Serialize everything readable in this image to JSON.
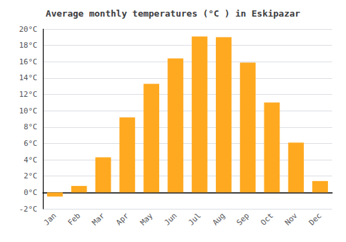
{
  "chart_data": {
    "type": "bar",
    "title": "Average monthly temperatures (°C ) in Eskipazar",
    "categories": [
      "Jan",
      "Feb",
      "Mar",
      "Apr",
      "May",
      "Jun",
      "Jul",
      "Aug",
      "Sep",
      "Oct",
      "Nov",
      "Dec"
    ],
    "values": [
      -0.5,
      0.8,
      4.3,
      9.2,
      13.3,
      16.4,
      19.1,
      19.0,
      15.9,
      11.0,
      6.1,
      1.4
    ],
    "color": "#FFA920",
    "ylim": [
      -2,
      20
    ],
    "yticks": [
      {
        "value": -2,
        "label": "-2°C"
      },
      {
        "value": 0,
        "label": "0°C"
      },
      {
        "value": 2,
        "label": "2°C"
      },
      {
        "value": 4,
        "label": "4°C"
      },
      {
        "value": 6,
        "label": "6°C"
      },
      {
        "value": 8,
        "label": "8°C"
      },
      {
        "value": 10,
        "label": "10°C"
      },
      {
        "value": 12,
        "label": "12°C"
      },
      {
        "value": 14,
        "label": "14°C"
      },
      {
        "value": 16,
        "label": "16°C"
      },
      {
        "value": 18,
        "label": "18°C"
      },
      {
        "value": 20,
        "label": "20°C"
      }
    ],
    "grid": true
  }
}
